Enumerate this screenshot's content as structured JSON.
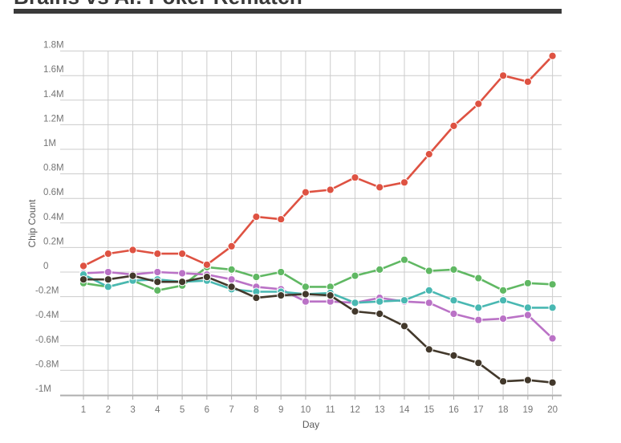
{
  "title": "Brains vs AI: Poker Rematch",
  "colors": {
    "title_text": "#393939",
    "title_underline": "#3a3a3a",
    "grid": "#cccccc",
    "axis_line": "#ababab",
    "tick_text": "#757575",
    "axis_title_text": "#5a5a5a",
    "background": "#ffffff"
  },
  "chart_data": {
    "type": "line",
    "title": "Brains vs AI: Poker Rematch",
    "xlabel": "Day",
    "ylabel": "Chip Count",
    "x": [
      1,
      2,
      3,
      4,
      5,
      6,
      7,
      8,
      9,
      10,
      11,
      12,
      13,
      14,
      15,
      16,
      17,
      18,
      19,
      20
    ],
    "x_tick_labels": [
      "1",
      "2",
      "3",
      "4",
      "5",
      "6",
      "7",
      "8",
      "9",
      "10",
      "11",
      "12",
      "13",
      "14",
      "15",
      "16",
      "17",
      "18",
      "19",
      "20"
    ],
    "ylim": [
      -1.0,
      1.8
    ],
    "ytick_values": [
      1.8,
      1.6,
      1.4,
      1.2,
      1.0,
      0.8,
      0.6,
      0.4,
      0.2,
      0,
      -0.2,
      -0.4,
      -0.6,
      -0.8,
      -1.0
    ],
    "ytick_labels": [
      "1.8M",
      "1.6M",
      "1.4M",
      "1.2M",
      "1M",
      "0.8M",
      "0.6M",
      "0.4M",
      "0.2M",
      "0",
      "-0.2M",
      "-0.4M",
      "-0.6M",
      "-0.8M",
      "-1M"
    ],
    "unit": "chips (millions)",
    "grid": true,
    "legend": "none",
    "series": [
      {
        "name": "red",
        "color": "#de5242",
        "values": [
          0.05,
          0.15,
          0.18,
          0.15,
          0.15,
          0.06,
          0.21,
          0.45,
          0.43,
          0.65,
          0.67,
          0.77,
          0.69,
          0.73,
          0.96,
          1.19,
          1.37,
          1.6,
          1.55,
          1.76
        ]
      },
      {
        "name": "green",
        "color": "#60b863",
        "values": [
          -0.09,
          -0.12,
          -0.07,
          -0.15,
          -0.11,
          0.04,
          0.02,
          -0.04,
          0.0,
          -0.12,
          -0.12,
          -0.03,
          0.02,
          0.1,
          0.01,
          0.02,
          -0.05,
          -0.15,
          -0.09,
          -0.1
        ]
      },
      {
        "name": "teal",
        "color": "#49b8b2",
        "values": [
          -0.02,
          -0.12,
          -0.07,
          -0.06,
          -0.08,
          -0.07,
          -0.14,
          -0.16,
          -0.16,
          -0.18,
          -0.17,
          -0.25,
          -0.24,
          -0.23,
          -0.15,
          -0.23,
          -0.29,
          -0.23,
          -0.29,
          -0.29
        ]
      },
      {
        "name": "purple",
        "color": "#ba72c6",
        "values": [
          -0.01,
          0.0,
          -0.02,
          0.0,
          -0.01,
          -0.02,
          -0.06,
          -0.12,
          -0.14,
          -0.24,
          -0.24,
          -0.25,
          -0.21,
          -0.24,
          -0.25,
          -0.34,
          -0.39,
          -0.38,
          -0.35,
          -0.54
        ]
      },
      {
        "name": "dark-brown",
        "color": "#42382b",
        "values": [
          -0.06,
          -0.06,
          -0.03,
          -0.08,
          -0.08,
          -0.04,
          -0.12,
          -0.21,
          -0.19,
          -0.18,
          -0.19,
          -0.32,
          -0.34,
          -0.44,
          -0.63,
          -0.68,
          -0.74,
          -0.89,
          -0.88,
          -0.9
        ]
      }
    ]
  }
}
